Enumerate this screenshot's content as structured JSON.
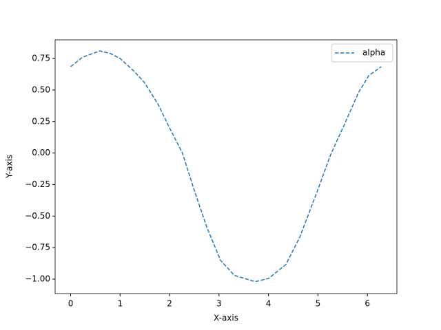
{
  "chart_data": {
    "type": "line",
    "x_label": "X-axis",
    "y_label": "Y-axis",
    "x": [
      0,
      0.24,
      0.59,
      0.8,
      1.0,
      1.28,
      1.49,
      1.77,
      1.98,
      2.26,
      2.47,
      2.75,
      3.03,
      3.31,
      3.73,
      4.0,
      4.35,
      4.63,
      4.98,
      5.26,
      5.54,
      5.82,
      6.03,
      6.28
    ],
    "series": [
      {
        "name": "alpha",
        "color": "#1f77b4",
        "dashed": true,
        "values": [
          0.685,
          0.76,
          0.81,
          0.79,
          0.75,
          0.65,
          0.56,
          0.385,
          0.215,
          0.0,
          -0.26,
          -0.585,
          -0.85,
          -0.97,
          -1.02,
          -0.995,
          -0.885,
          -0.67,
          -0.31,
          -0.01,
          0.23,
          0.48,
          0.615,
          0.685
        ]
      }
    ],
    "xlim": [
      -0.314,
      6.597
    ],
    "ylim": [
      -1.1145,
      0.8975
    ],
    "xticks": [
      0,
      1,
      2,
      3,
      4,
      5,
      6
    ],
    "yticks": [
      {
        "value": -1,
        "label": "−1.00"
      },
      {
        "value": -0.75,
        "label": "−0.75"
      },
      {
        "value": -0.5,
        "label": "−0.50"
      },
      {
        "value": -0.25,
        "label": "−0.25"
      },
      {
        "value": 0,
        "label": "0.00"
      },
      0.25,
      {
        "value": 0.5,
        "label": "0.50"
      },
      0.75
    ],
    "legend": "upper right"
  }
}
